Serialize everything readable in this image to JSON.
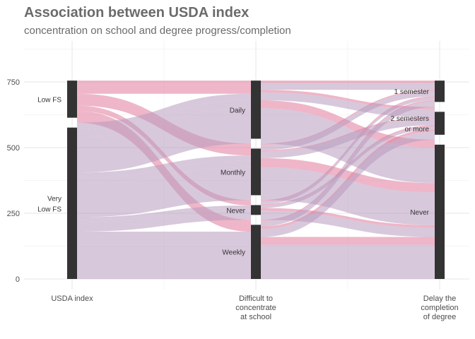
{
  "chart_data": {
    "type": "alluvial",
    "title": "Association between USDA index",
    "subtitle": "concentration on school and degree progress/completion",
    "axes": [
      "USDA index",
      "Difficult to concentrate at school",
      "Delay the completion of degree"
    ],
    "axis_labels": [
      [
        "USDA index"
      ],
      [
        "Difficult to",
        "concentrate",
        "at school"
      ],
      [
        "Delay the",
        "completion",
        "of degree"
      ]
    ],
    "strata": [
      [
        {
          "name": "Low FS",
          "label": [
            "Low FS"
          ],
          "value": 160
        },
        {
          "name": "Very Low FS",
          "label": [
            "Very",
            "Low FS"
          ],
          "value": 595
        }
      ],
      [
        {
          "name": "Daily",
          "label": [
            "Daily"
          ],
          "value": 240
        },
        {
          "name": "Monthly",
          "label": [
            "Monthly"
          ],
          "value": 215
        },
        {
          "name": "Never",
          "label": [
            "Never"
          ],
          "value": 75
        },
        {
          "name": "Weekly",
          "label": [
            "Weekly"
          ],
          "value": 225
        }
      ],
      [
        {
          "name": "1 semester",
          "label": [
            "1 semester"
          ],
          "value": 100
        },
        {
          "name": "2 semesters or more",
          "label": [
            "2 semesters",
            "or more"
          ],
          "value": 125
        },
        {
          "name": "Never",
          "label": [
            "Never"
          ],
          "value": 530
        }
      ]
    ],
    "flows": [
      {
        "path": [
          "Low FS",
          "Daily",
          "1 semester"
        ],
        "value": 10
      },
      {
        "path": [
          "Low FS",
          "Daily",
          "2 semesters or more"
        ],
        "value": 10
      },
      {
        "path": [
          "Low FS",
          "Daily",
          "Never"
        ],
        "value": 30
      },
      {
        "path": [
          "Low FS",
          "Monthly",
          "1 semester"
        ],
        "value": 5
      },
      {
        "path": [
          "Low FS",
          "Monthly",
          "2 semesters or more"
        ],
        "value": 5
      },
      {
        "path": [
          "Low FS",
          "Monthly",
          "Never"
        ],
        "value": 35
      },
      {
        "path": [
          "Low FS",
          "Never",
          "1 semester"
        ],
        "value": 5
      },
      {
        "path": [
          "Low FS",
          "Never",
          "2 semesters or more"
        ],
        "value": 5
      },
      {
        "path": [
          "Low FS",
          "Never",
          "Never"
        ],
        "value": 10
      },
      {
        "path": [
          "Low FS",
          "Weekly",
          "1 semester"
        ],
        "value": 5
      },
      {
        "path": [
          "Low FS",
          "Weekly",
          "2 semesters or more"
        ],
        "value": 10
      },
      {
        "path": [
          "Low FS",
          "Weekly",
          "Never"
        ],
        "value": 30
      },
      {
        "path": [
          "Very Low FS",
          "Daily",
          "1 semester"
        ],
        "value": 25
      },
      {
        "path": [
          "Very Low FS",
          "Daily",
          "2 semesters or more"
        ],
        "value": 30
      },
      {
        "path": [
          "Very Low FS",
          "Daily",
          "Never"
        ],
        "value": 135
      },
      {
        "path": [
          "Very Low FS",
          "Monthly",
          "1 semester"
        ],
        "value": 20
      },
      {
        "path": [
          "Very Low FS",
          "Monthly",
          "2 semesters or more"
        ],
        "value": 25
      },
      {
        "path": [
          "Very Low FS",
          "Monthly",
          "Never"
        ],
        "value": 125
      },
      {
        "path": [
          "Very Low FS",
          "Never",
          "1 semester"
        ],
        "value": 10
      },
      {
        "path": [
          "Very Low FS",
          "Never",
          "2 semesters or more"
        ],
        "value": 10
      },
      {
        "path": [
          "Very Low FS",
          "Never",
          "Never"
        ],
        "value": 35
      },
      {
        "path": [
          "Very Low FS",
          "Weekly",
          "1 semester"
        ],
        "value": 20
      },
      {
        "path": [
          "Very Low FS",
          "Weekly",
          "2 semesters or more"
        ],
        "value": 30
      },
      {
        "path": [
          "Very Low FS",
          "Weekly",
          "Never"
        ],
        "value": 130
      }
    ],
    "fill_by_axis1": {
      "Low FS": "#e07a9a",
      "Very Low FS": "#b89bbd"
    },
    "stratum_color": "#333333",
    "yticks": [
      0,
      250,
      500,
      750
    ],
    "ylim": [
      0,
      870
    ],
    "grid": true,
    "legend": "none"
  }
}
